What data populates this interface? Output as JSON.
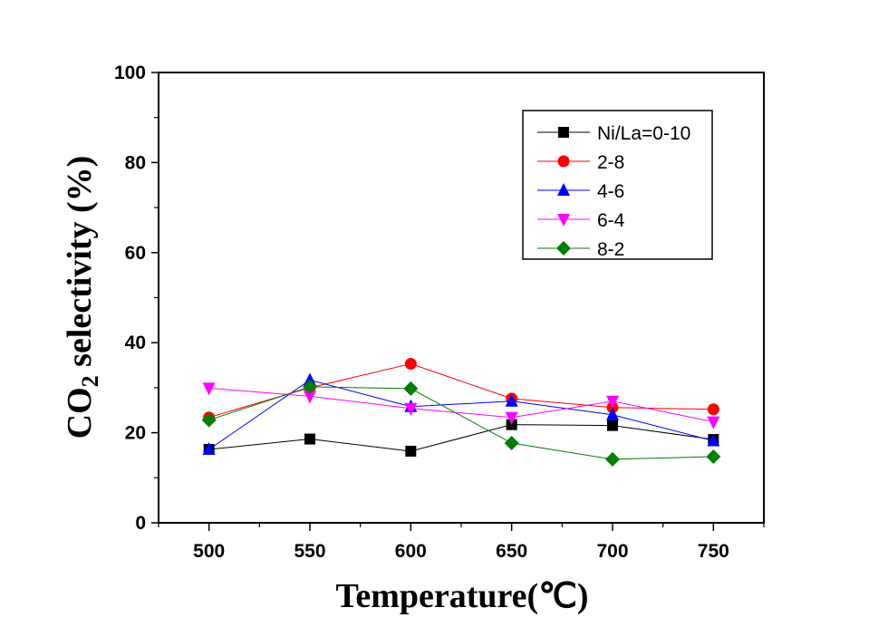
{
  "chart_data": {
    "type": "line",
    "title": "",
    "xlabel": "Temperature(℃)",
    "ylabel_main": "CO",
    "ylabel_sub": "2",
    "ylabel_rest": " selectivity (%)",
    "ylabel": "CO2 selectivity (%)",
    "x": [
      500,
      550,
      600,
      650,
      700,
      750
    ],
    "xlim": [
      475,
      775
    ],
    "ylim": [
      0,
      100
    ],
    "xticks": [
      500,
      550,
      600,
      650,
      700,
      750
    ],
    "xtick_labels": [
      "500",
      "550",
      "600",
      "650",
      "700",
      "750"
    ],
    "yticks": [
      0,
      20,
      40,
      60,
      80,
      100
    ],
    "ytick_labels": [
      "0",
      "20",
      "40",
      "60",
      "80",
      "100"
    ],
    "grid": false,
    "legend_position": "top-right",
    "series": [
      {
        "name": "Ni/La=0-10",
        "color": "#000000",
        "marker": "square",
        "values": [
          16.3,
          18.6,
          15.9,
          21.8,
          21.6,
          18.5
        ]
      },
      {
        "name": "2-8",
        "color": "#ff0000",
        "marker": "circle",
        "values": [
          23.4,
          30.0,
          35.3,
          27.6,
          25.6,
          25.2
        ]
      },
      {
        "name": "4-6",
        "color": "#0000ff",
        "marker": "triangle-up",
        "values": [
          16.3,
          31.7,
          25.8,
          27.0,
          24.0,
          18.2
        ]
      },
      {
        "name": "6-4",
        "color": "#ff00ff",
        "marker": "triangle-down",
        "values": [
          29.9,
          28.1,
          25.4,
          23.4,
          27.0,
          22.4
        ]
      },
      {
        "name": "8-2",
        "color": "#007f00",
        "marker": "diamond",
        "values": [
          22.8,
          30.2,
          29.8,
          17.7,
          14.1,
          14.7
        ]
      }
    ]
  }
}
